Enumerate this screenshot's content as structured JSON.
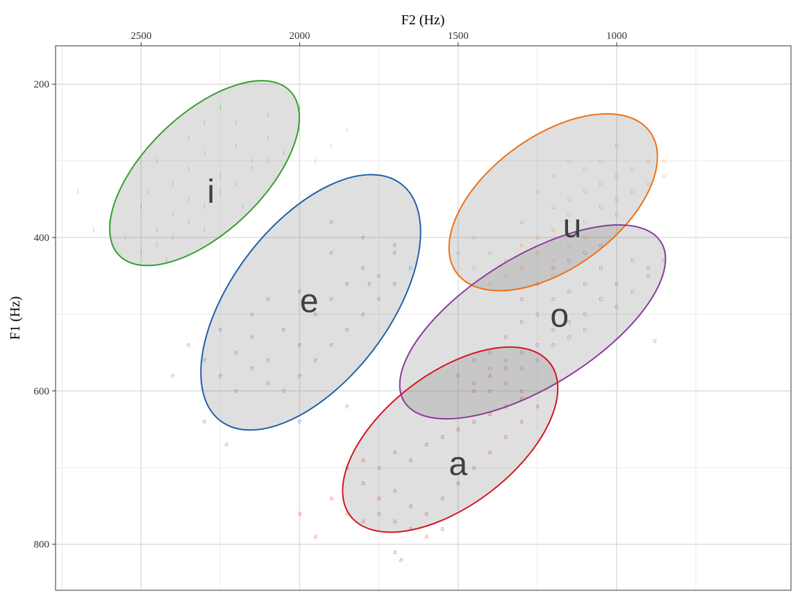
{
  "chart_data": {
    "type": "scatter",
    "title": "",
    "xlabel": "F2 (Hz)",
    "ylabel": "F1 (Hz)",
    "x_axis_position": "top",
    "x_reversed": true,
    "y_reversed": true,
    "xlim": [
      2770,
      450
    ],
    "ylim": [
      150,
      860
    ],
    "x_ticks": [
      2500,
      2000,
      1500,
      1000
    ],
    "x_tick_labels": [
      "2500",
      "2000",
      "1500",
      "1000"
    ],
    "y_ticks": [
      200,
      400,
      600,
      800
    ],
    "y_tick_labels": [
      "200",
      "400",
      "600",
      "800"
    ],
    "grid": true,
    "legend": "none",
    "series": [
      {
        "name": "i",
        "color": "#33a02c",
        "ellipse": {
          "f2_a": 2570,
          "f1_a": 423,
          "f2_b": 2030,
          "f1_b": 209,
          "minor_f2": 130,
          "minor_f1": 55
        },
        "label_position": {
          "f2": 2280,
          "f1": 340
        },
        "points": [
          [
            2450,
            300
          ],
          [
            2400,
            330
          ],
          [
            2350,
            310
          ],
          [
            2300,
            290
          ],
          [
            2250,
            320
          ],
          [
            2200,
            280
          ],
          [
            2150,
            300
          ],
          [
            2100,
            270
          ],
          [
            2050,
            290
          ],
          [
            2000,
            260
          ],
          [
            2500,
            360
          ],
          [
            2450,
            390
          ],
          [
            2400,
            370
          ],
          [
            2350,
            350
          ],
          [
            2300,
            360
          ],
          [
            2250,
            340
          ],
          [
            2200,
            330
          ],
          [
            2150,
            310
          ],
          [
            2100,
            300
          ],
          [
            2550,
            400
          ],
          [
            2500,
            420
          ],
          [
            2450,
            410
          ],
          [
            2400,
            400
          ],
          [
            2350,
            380
          ],
          [
            2300,
            390
          ],
          [
            2600,
            380
          ],
          [
            2650,
            390
          ],
          [
            2700,
            340
          ],
          [
            2200,
            250
          ],
          [
            2100,
            240
          ],
          [
            2000,
            230
          ],
          [
            1950,
            300
          ],
          [
            1900,
            280
          ],
          [
            1850,
            260
          ],
          [
            2350,
            270
          ],
          [
            2300,
            250
          ],
          [
            2250,
            230
          ],
          [
            2180,
            360
          ],
          [
            2420,
            430
          ],
          [
            2480,
            340
          ]
        ]
      },
      {
        "name": "e",
        "color": "#1f5fa8",
        "ellipse": {
          "f2_a": 2250,
          "f1_a": 639,
          "f2_b": 1680,
          "f1_b": 330,
          "minor_f2": 155,
          "minor_f1": 80
        },
        "label_position": {
          "f2": 1970,
          "f1": 483
        },
        "points": [
          [
            2200,
            550
          ],
          [
            2150,
            530
          ],
          [
            2100,
            560
          ],
          [
            2050,
            520
          ],
          [
            2000,
            540
          ],
          [
            1950,
            500
          ],
          [
            1900,
            480
          ],
          [
            1850,
            460
          ],
          [
            1800,
            440
          ],
          [
            1750,
            450
          ],
          [
            1700,
            420
          ],
          [
            1650,
            440
          ],
          [
            2250,
            580
          ],
          [
            2200,
            600
          ],
          [
            2150,
            570
          ],
          [
            2100,
            590
          ],
          [
            2050,
            600
          ],
          [
            2000,
            580
          ],
          [
            1950,
            560
          ],
          [
            1900,
            540
          ],
          [
            1850,
            520
          ],
          [
            1800,
            500
          ],
          [
            1750,
            480
          ],
          [
            1700,
            460
          ],
          [
            2300,
            560
          ],
          [
            2350,
            540
          ],
          [
            2400,
            580
          ],
          [
            2250,
            520
          ],
          [
            2100,
            480
          ],
          [
            2000,
            470
          ],
          [
            1900,
            420
          ],
          [
            1800,
            400
          ],
          [
            1700,
            410
          ],
          [
            2300,
            640
          ],
          [
            2000,
            640
          ],
          [
            1850,
            620
          ],
          [
            2230,
            670
          ],
          [
            1900,
            380
          ],
          [
            1780,
            460
          ],
          [
            2150,
            500
          ]
        ]
      },
      {
        "name": "u",
        "color": "#f07012",
        "ellipse": {
          "f2_a": 1505,
          "f1_a": 446,
          "f2_b": 895,
          "f1_b": 262,
          "minor_f2": 160,
          "minor_f1": 55
        },
        "label_position": {
          "f2": 1140,
          "f1": 385
        },
        "points": [
          [
            1200,
            320
          ],
          [
            1150,
            300
          ],
          [
            1100,
            310
          ],
          [
            1050,
            300
          ],
          [
            1000,
            320
          ],
          [
            950,
            310
          ],
          [
            900,
            300
          ],
          [
            850,
            320
          ],
          [
            1250,
            340
          ],
          [
            1200,
            360
          ],
          [
            1150,
            350
          ],
          [
            1100,
            340
          ],
          [
            1050,
            330
          ],
          [
            1000,
            350
          ],
          [
            950,
            340
          ],
          [
            900,
            330
          ],
          [
            1300,
            380
          ],
          [
            1250,
            400
          ],
          [
            1200,
            390
          ],
          [
            1150,
            370
          ],
          [
            1100,
            380
          ],
          [
            1050,
            360
          ],
          [
            1000,
            370
          ],
          [
            1400,
            420
          ],
          [
            1350,
            430
          ],
          [
            1300,
            410
          ],
          [
            1250,
            420
          ],
          [
            1200,
            430
          ],
          [
            1150,
            410
          ],
          [
            1100,
            400
          ],
          [
            1450,
            440
          ],
          [
            1400,
            460
          ],
          [
            1350,
            450
          ],
          [
            1300,
            440
          ],
          [
            1250,
            460
          ],
          [
            1200,
            450
          ],
          [
            1500,
            420
          ],
          [
            1450,
            400
          ],
          [
            850,
            300
          ],
          [
            1000,
            280
          ]
        ]
      },
      {
        "name": "o",
        "color": "#8b3a9c",
        "ellipse": {
          "f2_a": 1670,
          "f1_a": 614,
          "f2_b": 860,
          "f1_b": 406,
          "minor_f2": 165,
          "minor_f1": 50
        },
        "label_position": {
          "f2": 1180,
          "f1": 502
        },
        "points": [
          [
            1000,
            460
          ],
          [
            950,
            470
          ],
          [
            900,
            450
          ],
          [
            1050,
            440
          ],
          [
            1100,
            460
          ],
          [
            1150,
            470
          ],
          [
            1200,
            480
          ],
          [
            1250,
            500
          ],
          [
            1300,
            510
          ],
          [
            1350,
            530
          ],
          [
            1400,
            550
          ],
          [
            1450,
            560
          ],
          [
            1100,
            500
          ],
          [
            1150,
            510
          ],
          [
            1200,
            520
          ],
          [
            1250,
            540
          ],
          [
            1300,
            550
          ],
          [
            1350,
            560
          ],
          [
            1400,
            570
          ],
          [
            950,
            430
          ],
          [
            900,
            440
          ],
          [
            850,
            430
          ],
          [
            1050,
            480
          ],
          [
            1000,
            490
          ],
          [
            1300,
            480
          ],
          [
            1250,
            460
          ],
          [
            1200,
            440
          ],
          [
            1150,
            430
          ],
          [
            1100,
            420
          ],
          [
            1050,
            410
          ],
          [
            1500,
            580
          ],
          [
            1450,
            590
          ],
          [
            1400,
            600
          ],
          [
            1350,
            590
          ],
          [
            1300,
            570
          ],
          [
            1250,
            560
          ],
          [
            1200,
            540
          ],
          [
            1150,
            530
          ],
          [
            1100,
            520
          ],
          [
            880,
            535
          ]
        ]
      },
      {
        "name": "a",
        "color": "#d41423",
        "ellipse": {
          "f2_a": 1840,
          "f1_a": 763,
          "f2_b": 1210,
          "f1_b": 564,
          "minor_f2": 160,
          "minor_f1": 55
        },
        "label_position": {
          "f2": 1500,
          "f1": 695
        },
        "points": [
          [
            1800,
            720
          ],
          [
            1750,
            740
          ],
          [
            1700,
            730
          ],
          [
            1650,
            750
          ],
          [
            1600,
            760
          ],
          [
            1550,
            740
          ],
          [
            1500,
            720
          ],
          [
            1450,
            700
          ],
          [
            1400,
            680
          ],
          [
            1350,
            660
          ],
          [
            1300,
            640
          ],
          [
            1250,
            620
          ],
          [
            1850,
            700
          ],
          [
            1800,
            690
          ],
          [
            1750,
            700
          ],
          [
            1700,
            680
          ],
          [
            1650,
            690
          ],
          [
            1600,
            670
          ],
          [
            1550,
            660
          ],
          [
            1500,
            650
          ],
          [
            1450,
            640
          ],
          [
            1400,
            630
          ],
          [
            1350,
            620
          ],
          [
            1300,
            610
          ],
          [
            1900,
            740
          ],
          [
            1850,
            760
          ],
          [
            1800,
            770
          ],
          [
            1750,
            760
          ],
          [
            1700,
            770
          ],
          [
            1650,
            780
          ],
          [
            1600,
            790
          ],
          [
            1550,
            780
          ],
          [
            1950,
            790
          ],
          [
            2000,
            760
          ],
          [
            1450,
            600
          ],
          [
            1400,
            580
          ],
          [
            1350,
            570
          ],
          [
            1300,
            600
          ],
          [
            1700,
            810
          ],
          [
            1680,
            820
          ]
        ]
      }
    ]
  }
}
